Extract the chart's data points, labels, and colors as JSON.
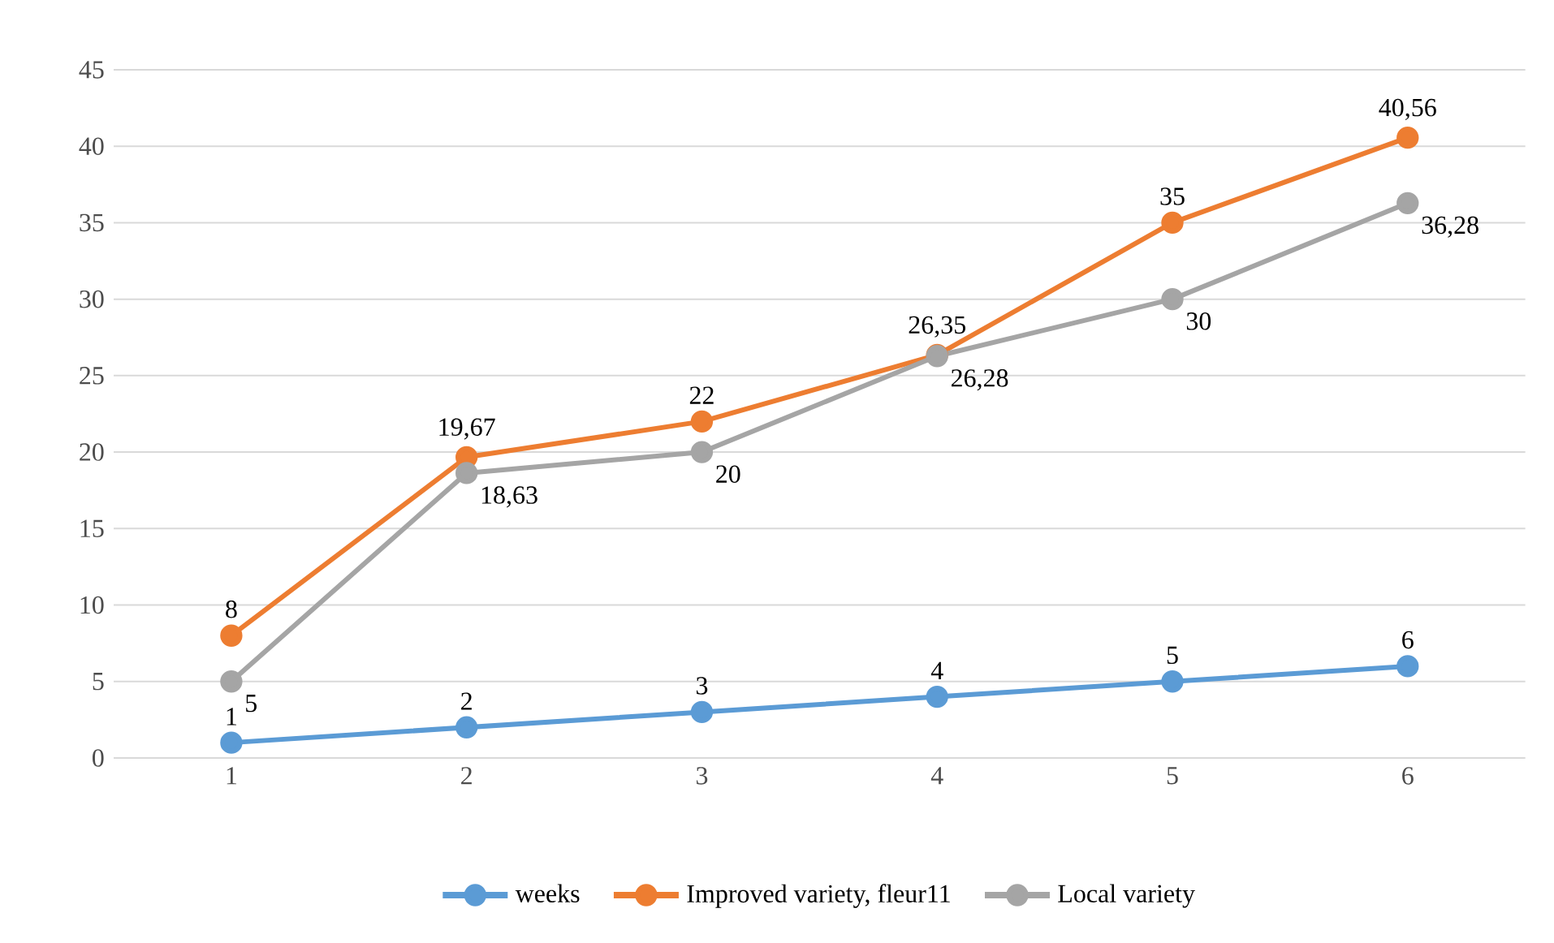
{
  "chart_data": {
    "type": "line",
    "categories": [
      "1",
      "2",
      "3",
      "4",
      "5",
      "6"
    ],
    "series": [
      {
        "name": "weeks",
        "color": "#5b9bd5",
        "values": [
          1,
          2,
          3,
          4,
          5,
          6
        ],
        "value_labels": [
          "1",
          "2",
          "3",
          "4",
          "5",
          "6"
        ]
      },
      {
        "name": "Improved variety, fleur11",
        "color": "#ed7d31",
        "values": [
          8,
          19.67,
          22,
          26.35,
          35,
          40.56
        ],
        "value_labels": [
          "8",
          "19,67",
          "22",
          "26,35",
          "35",
          "40,56"
        ]
      },
      {
        "name": "Local variety",
        "color": "#a5a5a5",
        "values": [
          5,
          18.63,
          20,
          26.28,
          30,
          36.28
        ],
        "value_labels": [
          "5",
          "18,63",
          "20",
          "26,28",
          "30",
          "36,28"
        ]
      }
    ],
    "ylim": [
      0,
      45
    ],
    "yticks": [
      0,
      5,
      10,
      15,
      20,
      25,
      30,
      35,
      40,
      45
    ],
    "grid": "y",
    "legend": "bottom",
    "marker": "circle",
    "line_style": "solid"
  }
}
